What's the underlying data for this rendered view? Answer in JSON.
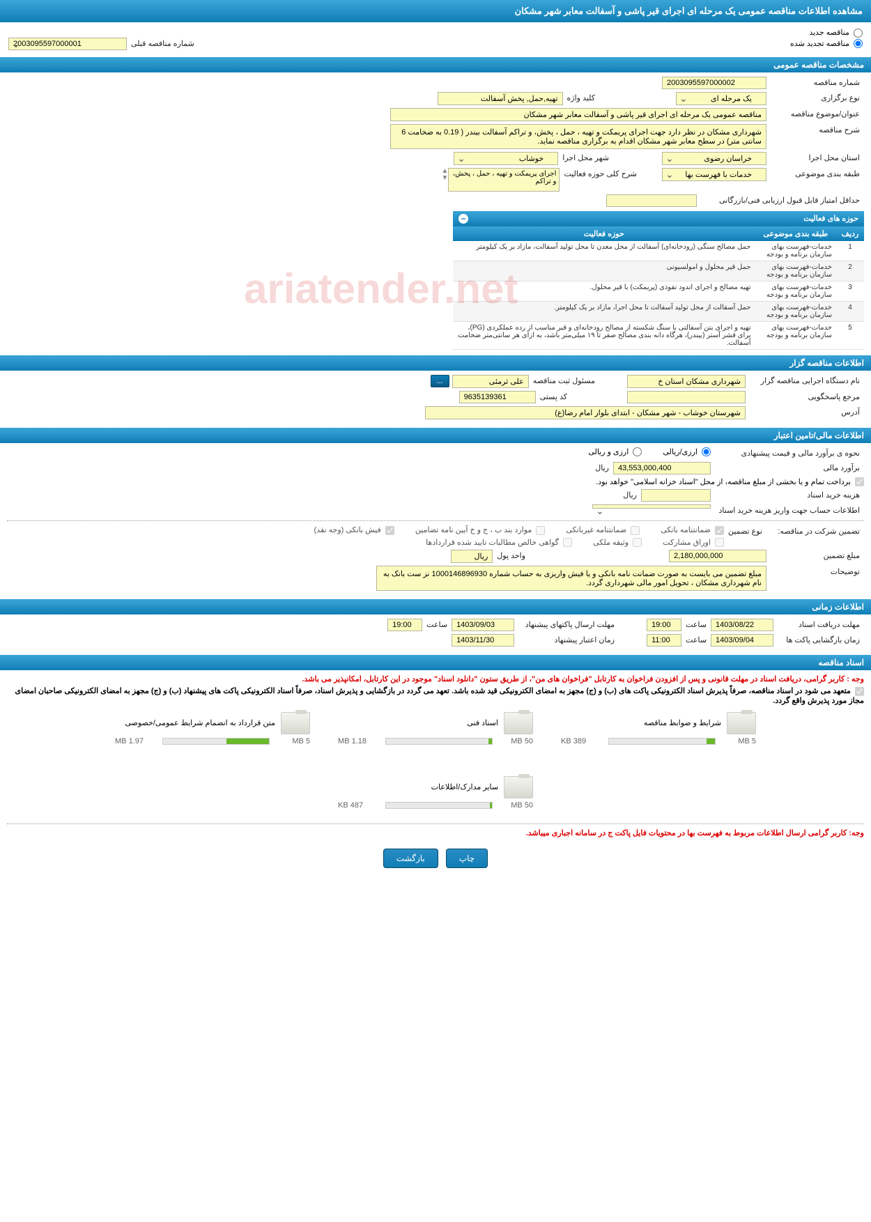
{
  "page_title": "مشاهده اطلاعات مناقصه عمومی یک مرحله ای اجرای قیر پاشی و آسفالت معابر شهر مشکان",
  "radios": {
    "new_tender": "مناقصه جدید",
    "renewed_tender": "مناقصه تجدید شده",
    "prev_num_label": "شماره مناقصه قبلی",
    "prev_num_value": "2003095597000001"
  },
  "sections": {
    "general": "مشخصات مناقصه عمومی",
    "activities": "حوزه های فعالیت",
    "organizer": "اطلاعات مناقصه گزار",
    "financial": "اطلاعات مالی/تامین اعتبار",
    "timing": "اطلاعات زمانی",
    "docs": "اسناد مناقصه"
  },
  "general": {
    "tender_no_label": "شماره مناقصه",
    "tender_no": "2003095597000002",
    "hold_type_label": "نوع برگزاری",
    "hold_type": "یک مرحله ای",
    "keyword_label": "کلید واژه",
    "keyword": "تهیه,حمل, پخش آسفالت",
    "subject_label": "عنوان/موضوع مناقصه",
    "subject": "مناقصه عمومی یک مرحله ای اجرای قیر پاشی و آسفالت معابر شهر مشکان",
    "desc_label": "شرح مناقصه",
    "desc": "شهرداری مشکان در نظر دارد جهت اجرای پریمکت و تهیه ، حمل ، پخش، و تراکم آسفالت بیندر ( 0.19 به ضخامت 6 سانتی متر) در سطح معابر شهر مشکان اقدام به برگزاری مناقصه نماید.",
    "province_label": "استان محل اجرا",
    "province": "خراسان رضوی",
    "city_label": "شهر محل اجرا",
    "city": "خوشاب",
    "subject_class_label": "طبقه بندی موضوعی",
    "subject_class": "خدمات با فهرست بها",
    "activity_scope_label": "شرح کلی حوزه فعالیت",
    "activity_scope": "اجرای پریمکت و تهیه ، حمل ، پخش، و تراکم",
    "min_score_label": "حداقل امتیاز قابل قبول ارزیابی فنی/بازرگانی",
    "min_score": ""
  },
  "activity_table": {
    "col_row": "ردیف",
    "col_class": "طبقه بندی موضوعی",
    "col_scope": "حوزه فعالیت",
    "rows": [
      {
        "n": "1",
        "c": "خدمات-فهرست بهای سازمان برنامه و بودجه",
        "s": "حمل مصالح سنگی (رودخانه‌ای) آسفالت از محل معدن تا محل تولید آسفالت، مازاد بر یک کیلومتر"
      },
      {
        "n": "2",
        "c": "خدمات-فهرست بهای سازمان برنامه و بودجه",
        "s": "حمل قیر محلول و امولسیونی"
      },
      {
        "n": "3",
        "c": "خدمات-فهرست بهای سازمان برنامه و بودجه",
        "s": "تهیه مصالح و اجرای اندود نفوذی (پریمکت) با قیر محلول."
      },
      {
        "n": "4",
        "c": "خدمات-فهرست بهای سازمان برنامه و بودجه",
        "s": "حمل آسفالت از محل تولید آسفالت تا محل اجرا، مازاد بر یک کیلومتر."
      },
      {
        "n": "5",
        "c": "خدمات-فهرست بهای سازمان برنامه و بودجه",
        "s": "تهیه و اجرای بتن آسفالتی با سنگ شکسته از مصالح رودخانه‌ای و قیر مناسب از رده عملکردی (PG)، برای قشر آستر (بیندر)، هرگاه دانه بندی مصالح صفر تا ۱۹ میلی‌متر باشد، به ازای هر سانتی‌متر ضخامت آسفالت."
      }
    ]
  },
  "organizer": {
    "org_label": "نام دستگاه اجرایی مناقصه گزار",
    "org": "شهرداری مشکان استان خ",
    "reg_label": "مسئول ثبت مناقصه",
    "reg": "علی ثرمئی",
    "more_btn": "...",
    "resp_label": "مرجع پاسخگویی",
    "resp": "",
    "postal_label": "کد پستی",
    "postal": "9635139361",
    "addr_label": "آدرس",
    "addr": "شهرستان خوشاب - شهر مشکان - ابتدای بلوار امام رضا(ع)"
  },
  "financial": {
    "est_method_label": "نحوه ی برآورد مالی و قیمت پیشنهادی",
    "opt_rial": "ارزی/ریالی",
    "opt_fx": "ارزی و ریالی",
    "est_label": "برآورد مالی",
    "est_value": "43,553,000,400",
    "rial": "ریال",
    "payment_note": "برداخت تمام و یا بخشی از مبلغ مناقصه، از محل \"اسناد خزانه اسلامی\" خواهد بود.",
    "doc_cost_label": "هزینه خرید اسناد",
    "doc_cost": "",
    "account_label": "اطلاعات حساب جهت واریز هزینه خرید اسناد",
    "guarantee_label": "تضمین شرکت در مناقصه:",
    "guarantee_type_label": "نوع تضمین",
    "chk_bank": "ضمانتنامه بانکی",
    "chk_nonbank": "ضمانتنامه غیربانکی",
    "chk_b_c_j": "موارد بند ب ، ج و خ آیین نامه تضامین",
    "chk_cash": "فیش بانکی (وجه نقد)",
    "chk_bonds": "اوراق مشارکت",
    "chk_property": "وثیقه ملکی",
    "chk_cert": "گواهی خالص مطالبات تایید شده قراردادها",
    "guar_amount_label": "مبلغ تضمین",
    "guar_amount": "2,180,000,000",
    "currency_label": "واحد پول",
    "currency": "ریال",
    "notes_label": "توضیحات",
    "notes": "مبلغ تضمین می بایست به صورت ضمانت نامه بانکی و یا فیش واریزی به حساب شماره 1000146896930 نز ست بانک به نام شهرداری مشکان ، تحویل امور مالی شهرداری گردد."
  },
  "timing": {
    "doc_deadline_label": "مهلت دریافت اسناد",
    "doc_deadline_date": "1403/08/22",
    "time_label": "ساعت",
    "doc_deadline_time": "19:00",
    "bid_deadline_label": "مهلت ارسال پاکتهاى پیشنهاد",
    "bid_deadline_date": "1403/09/03",
    "bid_deadline_time": "19:00",
    "open_label": "زمان بازگشایی پاکت ها",
    "open_date": "1403/09/04",
    "open_time": "11:00",
    "validity_label": "زمان اعتبار پیشنهاد",
    "validity_date": "1403/11/30"
  },
  "docs": {
    "red_note1": "وجه : کاربر گرامی، دریافت اسناد در مهلت قانونی و پس از افزودن فراخوان به کارتابل \"فراخوان های من\"، از طریق ستون \"دانلود اسناد\" موجود در این کارتابل، امکانپذیر می باشد.",
    "black_note": "متعهد می شود در اسناد مناقصه، صرفاً پذیرش اسناد الکترونیکی پاکت های (ب) و (ج) مجهز به امضای الکترونیکی قید شده باشد. تعهد می گردد در بازگشایی و پذیرش اسناد، صرفاً اسناد الکترونیکی پاکت های پیشنهاد (ب) و (ج) مجهز به امضای الکترونیکی صاحبان امضای مجاز مورد پذیرش واقع گردد.",
    "files": [
      {
        "title": "شرایط و ضوابط مناقصه",
        "cap": "5 MB",
        "used": "389 KB",
        "pct": 8
      },
      {
        "title": "اسناد فنی",
        "cap": "50 MB",
        "used": "1.18 MB",
        "pct": 3
      },
      {
        "title": "متن قرارداد به انضمام شرایط عمومی/خصوصی",
        "cap": "5 MB",
        "used": "1.97 MB",
        "pct": 40
      },
      {
        "title": "سایر مدارک/اطلاعات",
        "cap": "50 MB",
        "used": "487 KB",
        "pct": 2
      }
    ],
    "red_note2": "وجه: کاربر گرامی ارسال اطلاعات مربوط به فهرست بها در محتویات فایل پاکت ج در سامانه اجباری میباشد."
  },
  "buttons": {
    "print": "چاپ",
    "back": "بازگشت"
  },
  "colors": {
    "header_grad_top": "#3ba5d8",
    "header_grad_bottom": "#0f7eb5",
    "yellow": "#fbfbc0",
    "red": "#d00"
  }
}
